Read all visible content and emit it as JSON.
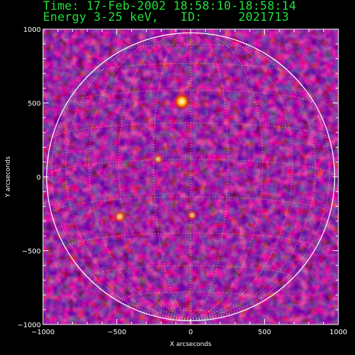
{
  "header": {
    "time_line": "Time: 17-Feb-2002 18:58:10-18:58:14",
    "energy_line": "Energy 3-25 keV,   ID:     2021713"
  },
  "colors": {
    "header_text": "#22e03a",
    "background_purple": "#3a1560",
    "limb": "#ffffff",
    "grid": "#ffd27a"
  },
  "chart_data": {
    "type": "heatmap",
    "title": "Time: 17-Feb-2002 18:58:10-18:58:14",
    "subtitle": "Energy 3-25 keV,   ID:     2021713",
    "xlabel": "X arcseconds",
    "ylabel": "Y arcseconds",
    "xlim": [
      -1000,
      1000
    ],
    "ylim": [
      -1000,
      1000
    ],
    "x_ticks": [
      -1000,
      -500,
      0,
      500,
      1000
    ],
    "y_ticks": [
      -1000,
      -500,
      0,
      500,
      1000
    ],
    "x_tick_labels": [
      "−1000",
      "−500",
      "0",
      "500",
      "1000"
    ],
    "y_tick_labels": [
      "−1000",
      "−500",
      "0",
      "500",
      "1000"
    ],
    "solar_radius": 975,
    "grid": "heliographic 15° dotted",
    "hot_spots": [
      {
        "x": -60,
        "y": 510,
        "intensity": 1.0
      },
      {
        "x": -480,
        "y": -270,
        "intensity": 0.6
      },
      {
        "x": 10,
        "y": -260,
        "intensity": 0.4
      },
      {
        "x": -220,
        "y": 120,
        "intensity": 0.4
      }
    ]
  }
}
